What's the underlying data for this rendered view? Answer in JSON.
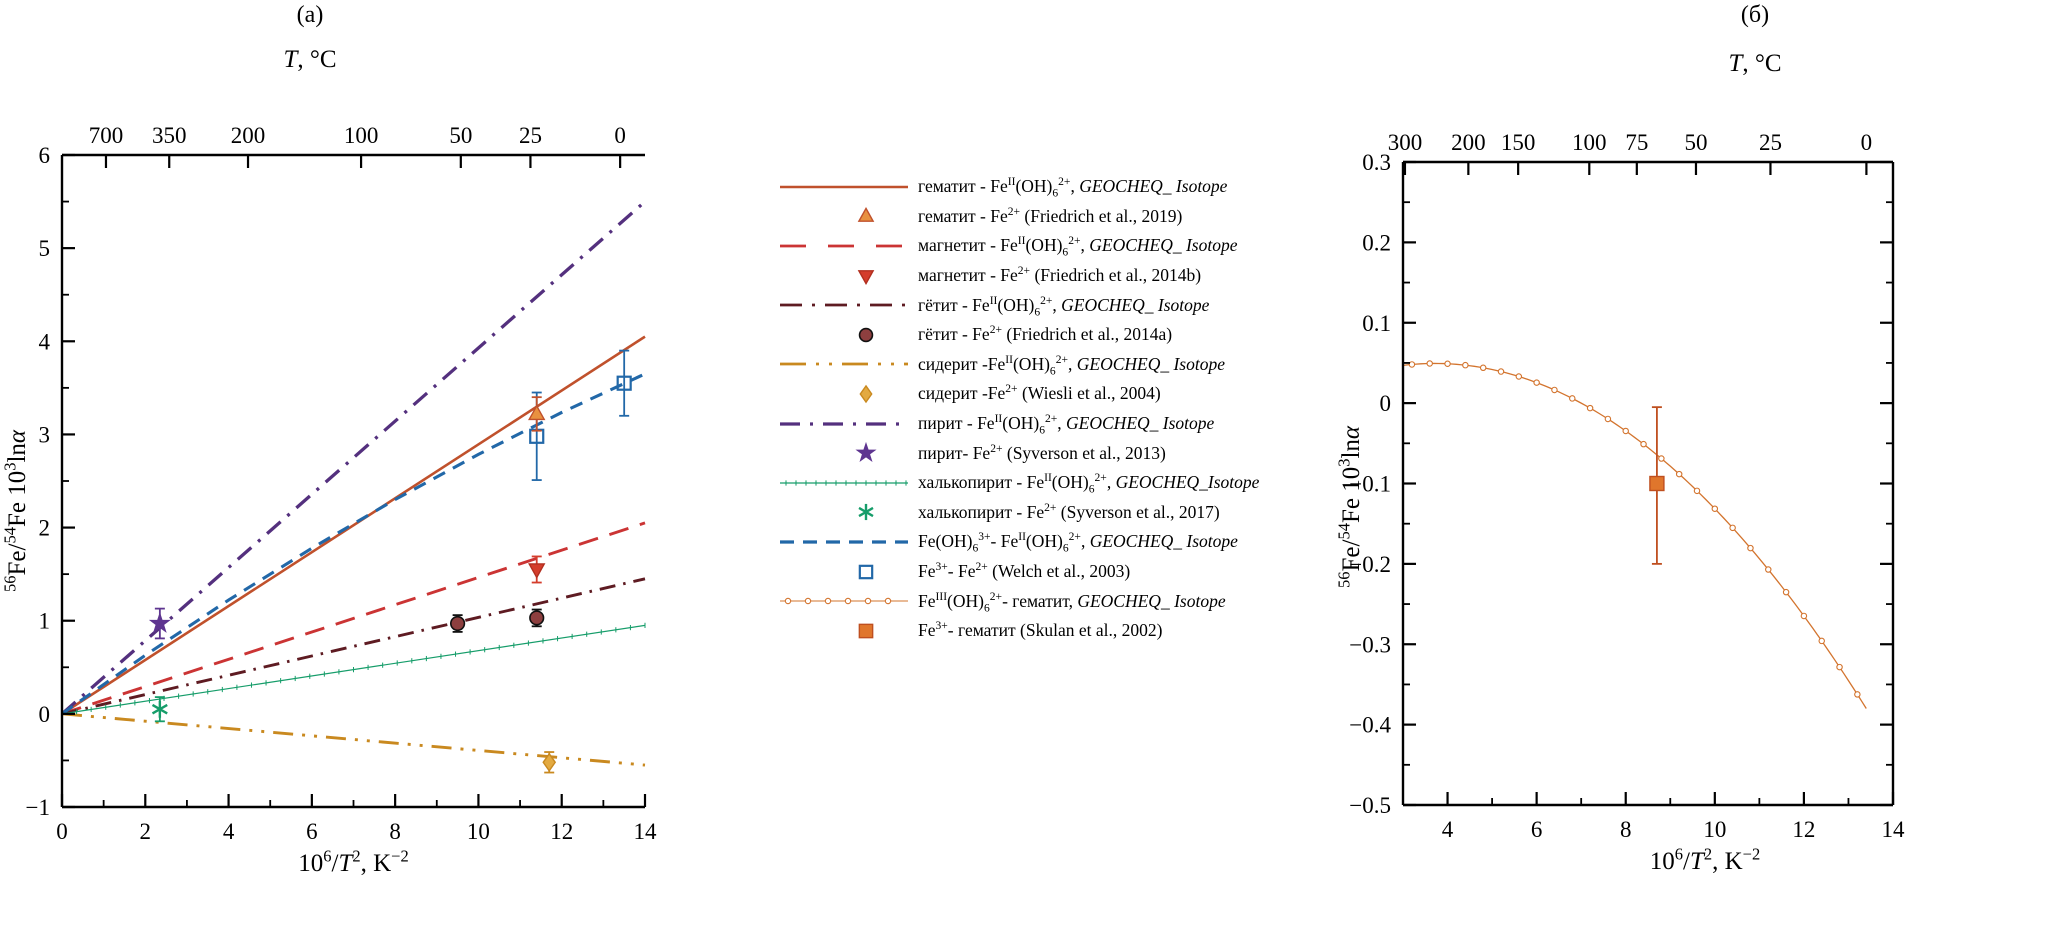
{
  "figure": {
    "panel_a": {
      "label": "(a)",
      "top_axis_title_html": "<i>T</i>, &#176;C",
      "x_axis_title_html": "10<sup>6</sup>/<i>T</i><sup>2</sup>, K<sup>&#8722;2</sup>",
      "y_axis_title_html": "<sup>56</sup>Fe/<sup>54</sup>Fe 10<sup>3</sup>ln<i>&#945;</i>"
    },
    "panel_b": {
      "label": "(б)",
      "top_axis_title_html": "<i>T</i>, &#176;C",
      "x_axis_title_html": "10<sup>6</sup>/<i>T</i><sup>2</sup>, K<sup>&#8722;2</sup>",
      "y_axis_title_html": "<sup>56</sup>Fe/<sup>54</sup>Fe 10<sup>3</sup>ln<i>&#945;</i>"
    }
  },
  "legend": {
    "items": [
      {
        "key": {
          "type": "line",
          "color": "#c0512c",
          "width": 2.6,
          "dash": ""
        },
        "label_html": "гематит - Fe<sup>II</sup>(OH)<sub>6</sub><sup>2+</sup>, <i>GEOCHEQ_ Isotope</i>"
      },
      {
        "key": {
          "type": "marker",
          "shape": "triangle-up",
          "fill": "#e89140",
          "edge": "#c0512c"
        },
        "label_html": "гематит - Fe<sup>2+</sup> (Friedrich et al., 2019)"
      },
      {
        "key": {
          "type": "line",
          "color": "#cb3434",
          "width": 2.8,
          "dash": "26,22"
        },
        "label_html": "магнетит - Fe<sup>II</sup>(OH)<sub>6</sub><sup>2+</sup>, <i>GEOCHEQ_ Isotope</i>"
      },
      {
        "key": {
          "type": "marker",
          "shape": "triangle-down",
          "fill": "#d43d2c",
          "edge": "#b22f1f"
        },
        "label_html": "магнетит - Fe<sup>2+</sup> (Friedrich et al., 2014b)"
      },
      {
        "key": {
          "type": "line",
          "color": "#5e1b22",
          "width": 2.8,
          "dash": "22,10,3,10"
        },
        "label_html": "гётит - Fe<sup>II</sup>(OH)<sub>6</sub><sup>2+</sup>, <i>GEOCHEQ_ Isotope</i>"
      },
      {
        "key": {
          "type": "marker",
          "shape": "circle",
          "fill": "#8d3f3f",
          "edge": "#111111"
        },
        "label_html": "гётит - Fe<sup>2+</sup> (Friedrich et al., 2014a)"
      },
      {
        "key": {
          "type": "line",
          "color": "#c9891f",
          "width": 2.8,
          "dash": "26,10,3,10,3,10"
        },
        "label_html": "сидерит -Fe<sup>II</sup>(OH)<sub>6</sub><sup>2+</sup>, <i>GEOCHEQ_ Isotope</i>"
      },
      {
        "key": {
          "type": "marker",
          "shape": "diamond",
          "fill": "#e3aa41",
          "edge": "#c9891f"
        },
        "label_html": "сидерит -Fe<sup>2+</sup> (Wiesli et al., 2004)"
      },
      {
        "key": {
          "type": "line",
          "color": "#54307e",
          "width": 3.2,
          "dash": "20,10,3,10"
        },
        "label_html": "пирит - Fe<sup>II</sup>(OH)<sub>6</sub><sup>2+</sup>, <i>GEOCHEQ_ Isotope</i>"
      },
      {
        "key": {
          "type": "marker",
          "shape": "star",
          "fill": "#5e3590",
          "edge": "#5e3590"
        },
        "label_html": "пирит- Fe<sup>2+</sup> (Syverson et al., 2013)"
      },
      {
        "key": {
          "type": "line-ticks",
          "color": "#169d6a",
          "width": 1.2
        },
        "label_html": "халькопирит - Fe<sup>II</sup>(OH)<sub>6</sub><sup>2+</sup>, <i>GEOCHEQ_Isotope</i>"
      },
      {
        "key": {
          "type": "marker",
          "shape": "asterisk",
          "fill": "#169d6a",
          "edge": "#169d6a"
        },
        "label_html": "халькопирит - Fe<sup>2+</sup> (Syverson et al., 2017)"
      },
      {
        "key": {
          "type": "line",
          "color": "#2268a8",
          "width": 3.2,
          "dash": "14,9"
        },
        "label_html": "Fe(OH)<sub>6</sub><sup>3+</sup>- Fe<sup>II</sup>(OH)<sub>6</sub><sup>2+</sup>, <i>GEOCHEQ_ Isotope</i>"
      },
      {
        "key": {
          "type": "marker",
          "shape": "square-open",
          "fill": "none",
          "edge": "#2268a8"
        },
        "label_html": "Fe<sup>3+</sup>- Fe<sup>2+</sup> (Welch et al., 2003)"
      },
      {
        "key": {
          "type": "line-circles",
          "color": "#d3742e",
          "width": 1.1
        },
        "label_html": "Fe<sup>III</sup>(OH)<sub>6</sub><sup>2+</sup>- гематит, <i>GEOCHEQ_ Isotope</i>"
      },
      {
        "key": {
          "type": "marker",
          "shape": "square-filled",
          "fill": "#e0762c",
          "edge": "#bf4f1f"
        },
        "label_html": "Fe<sup>3+</sup>- гематит (Skulan et al., 2002)"
      }
    ]
  },
  "chart_data": [
    {
      "type": "line",
      "panel": "(a)",
      "xlabel": "10^6/T^2, K^-2",
      "ylabel": "56Fe/54Fe 10^3 ln(alpha)",
      "top_axis_label": "T, C",
      "xlim": [
        0,
        14
      ],
      "ylim": [
        -1,
        6
      ],
      "x_major_ticks": [
        0,
        2,
        4,
        6,
        8,
        10,
        12,
        14
      ],
      "x_minor_step": 1,
      "y_major_ticks": [
        -1,
        0,
        1,
        2,
        3,
        4,
        5,
        6
      ],
      "y_minor_step": 0.5,
      "grid": false,
      "top_ticks": [
        {
          "label": "700",
          "x": 1.056
        },
        {
          "label": "350",
          "x": 2.575
        },
        {
          "label": "200",
          "x": 4.467
        },
        {
          "label": "100",
          "x": 7.182
        },
        {
          "label": "50",
          "x": 9.577
        },
        {
          "label": "25",
          "x": 11.249
        },
        {
          "label": "0",
          "x": 13.403
        }
      ],
      "series": [
        {
          "name": "gematit-FeII(OH)6, GEOCHEQ_Isotope",
          "color": "#c0512c",
          "width": 2.6,
          "dash": "",
          "points": [
            [
              0,
              0
            ],
            [
              14,
              4.05
            ]
          ]
        },
        {
          "name": "magnetit-FeII(OH)6, GEOCHEQ_Isotope",
          "color": "#cb3434",
          "width": 2.9,
          "dash": "20,12",
          "points": [
            [
              0,
              0
            ],
            [
              14,
              2.05
            ]
          ]
        },
        {
          "name": "getit-FeII(OH)6, GEOCHEQ_Isotope",
          "color": "#5e1b22",
          "width": 2.9,
          "dash": "16,8,2.5,8",
          "points": [
            [
              0,
              0
            ],
            [
              14,
              1.45
            ]
          ]
        },
        {
          "name": "siderit-FeII(OH)6, GEOCHEQ_Isotope",
          "color": "#c9891f",
          "width": 2.9,
          "dash": "20,9,3,9,3,9",
          "points": [
            [
              0,
              0
            ],
            [
              14,
              -0.55
            ]
          ]
        },
        {
          "name": "pirit-FeII(OH)6, GEOCHEQ_Isotope",
          "color": "#54307e",
          "width": 3.3,
          "dash": "18,9,3,9",
          "points": [
            [
              0,
              0
            ],
            [
              14,
              5.5
            ]
          ]
        },
        {
          "name": "halkopirit-FeII(OH)6, GEOCHEQ_Isotope",
          "color": "#169d6a",
          "width": 1.2,
          "dash": "",
          "tick_markers": true,
          "tick_step": 0.35,
          "points": [
            [
              0,
              0
            ],
            [
              14,
              0.95
            ]
          ]
        },
        {
          "name": "Fe(OH)6(3+)-FeII(OH)6(2+), GEOCHEQ_Isotope",
          "color": "#2268a8",
          "width": 3.1,
          "dash": "13,9",
          "points": [
            [
              0,
              0
            ],
            [
              2,
              0.629
            ],
            [
              4,
              1.222
            ],
            [
              6,
              1.779
            ],
            [
              8,
              2.301
            ],
            [
              10,
              2.786
            ],
            [
              12,
              3.236
            ],
            [
              14,
              3.65
            ]
          ]
        }
      ],
      "markers": [
        {
          "name": "pirit-Fe2+ (Syverson et al., 2013)",
          "shape": "star",
          "x": 2.35,
          "y": 0.97,
          "err": 0.16,
          "fill": "#5e3590",
          "edge": "#5e3590",
          "err_color": "#5e3590"
        },
        {
          "name": "halkopirit-Fe2+ (Syverson et al., 2017)",
          "shape": "asterisk",
          "x": 2.35,
          "y": 0.05,
          "err": 0.13,
          "fill": "#169d6a",
          "edge": "#169d6a",
          "err_color": "#169d6a"
        },
        {
          "name": "getit-Fe2+ (Friedrich et al., 2014a)",
          "shape": "circle",
          "x": 9.5,
          "y": 0.97,
          "err": 0.09,
          "fill": "#8d3f3f",
          "edge": "#111111",
          "err_color": "#111111"
        },
        {
          "name": "getit-Fe2+ (Friedrich et al., 2014a)",
          "shape": "circle",
          "x": 11.4,
          "y": 1.03,
          "err": 0.09,
          "fill": "#8d3f3f",
          "edge": "#111111",
          "err_color": "#111111"
        },
        {
          "name": "magnetit-Fe2+ (Friedrich et al., 2014b)",
          "shape": "triangle-down",
          "x": 11.4,
          "y": 1.55,
          "err": 0.14,
          "fill": "#d43d2c",
          "edge": "#b22f1f",
          "err_color": "#d43d2c"
        },
        {
          "name": "Fe3+-Fe2+ (Welch et al., 2003)",
          "shape": "square-open",
          "x": 11.4,
          "y": 2.98,
          "err": 0.47,
          "fill": "none",
          "edge": "#2268a8",
          "err_color": "#2268a8"
        },
        {
          "name": "gematit-Fe2+ (Friedrich et al., 2019)",
          "shape": "triangle-up",
          "x": 11.4,
          "y": 3.22,
          "err": 0.18,
          "fill": "#e89140",
          "edge": "#c0512c",
          "err_color": "#c0512c"
        },
        {
          "name": "Fe3+-Fe2+ (Welch et al., 2003)",
          "shape": "square-open",
          "x": 13.5,
          "y": 3.55,
          "err": 0.35,
          "fill": "none",
          "edge": "#2268a8",
          "err_color": "#2268a8"
        },
        {
          "name": "siderit-Fe2+ (Wiesli et al., 2004)",
          "shape": "diamond",
          "x": 11.7,
          "y": -0.52,
          "err": 0.11,
          "fill": "#e3aa41",
          "edge": "#c9891f",
          "err_color": "#c9891f"
        }
      ]
    },
    {
      "type": "line",
      "panel": "(b)",
      "xlabel": "10^6/T^2, K^-2",
      "ylabel": "56Fe/54Fe 10^3 ln(alpha)",
      "top_axis_label": "T, C",
      "xlim": [
        3,
        14
      ],
      "ylim": [
        -0.5,
        0.3
      ],
      "x_major_ticks": [
        4,
        6,
        8,
        10,
        12,
        14
      ],
      "x_minor_step": 1,
      "y_major_ticks": [
        -0.5,
        -0.4,
        -0.3,
        -0.2,
        -0.1,
        0,
        0.1,
        0.2,
        0.3
      ],
      "y_minor_step": 0.05,
      "grid": false,
      "right_spine": true,
      "top_ticks": [
        {
          "label": "300",
          "x": 3.044
        },
        {
          "label": "200",
          "x": 4.467
        },
        {
          "label": "150",
          "x": 5.585
        },
        {
          "label": "100",
          "x": 7.182
        },
        {
          "label": "75",
          "x": 8.249
        },
        {
          "label": "50",
          "x": 9.577
        },
        {
          "label": "25",
          "x": 11.249
        },
        {
          "label": "0",
          "x": 13.403
        }
      ],
      "series": [
        {
          "name": "FeIII(OH)6(2+)-gematit, GEOCHEQ_Isotope",
          "color": "#d3742e",
          "width": 1.3,
          "quad_coeffs": [
            -0.013915,
            0.034042,
            -0.004579
          ],
          "x_range": [
            3,
            13.4
          ],
          "circle_markers": true,
          "circle_step": 0.4
        }
      ],
      "markers": [
        {
          "name": "Fe3+-gematit (Skulan et al., 2002)",
          "shape": "square-filled",
          "x": 8.7,
          "y": -0.1,
          "err_up": 0.095,
          "err_down": 0.1,
          "fill": "#e0762c",
          "edge": "#bf4f1f",
          "err_color": "#bf4f1f"
        }
      ]
    }
  ]
}
